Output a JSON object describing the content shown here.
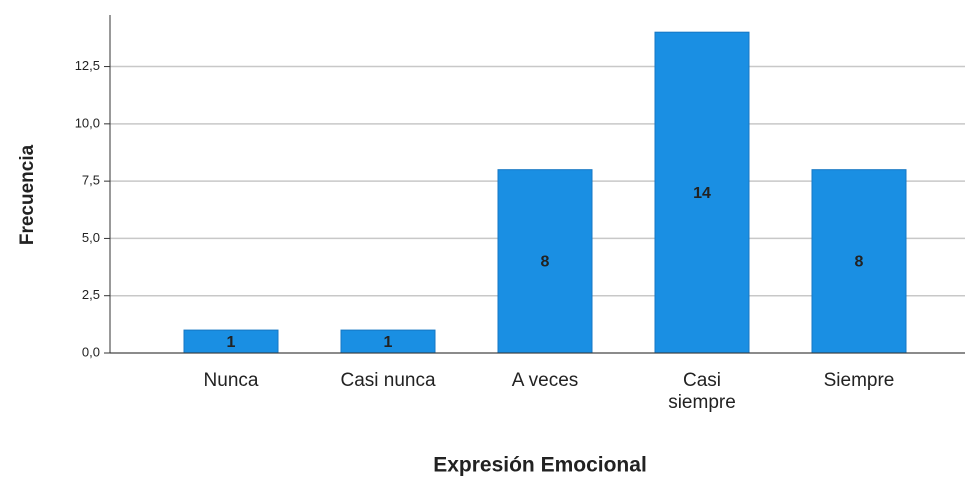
{
  "chart_data": {
    "type": "bar",
    "x_label": "Expresión Emocional",
    "y_label": "Frecuencia",
    "categories": [
      "Nunca",
      "Casi nunca",
      "A veces",
      "Casi\nsiempre",
      "Siempre"
    ],
    "values": [
      1,
      1,
      8,
      14,
      8
    ],
    "color": "#1a8fe3",
    "ylim": [
      0,
      14.75
    ],
    "yticks": [
      {
        "value": 0,
        "label": "0,0"
      },
      {
        "value": 2.5,
        "label": "2,5"
      },
      {
        "value": 5,
        "label": "5,0"
      },
      {
        "value": 7.5,
        "label": "7,5"
      },
      {
        "value": 10,
        "label": "10,0"
      },
      {
        "value": 12.5,
        "label": "12,5"
      }
    ],
    "grid": true
  }
}
